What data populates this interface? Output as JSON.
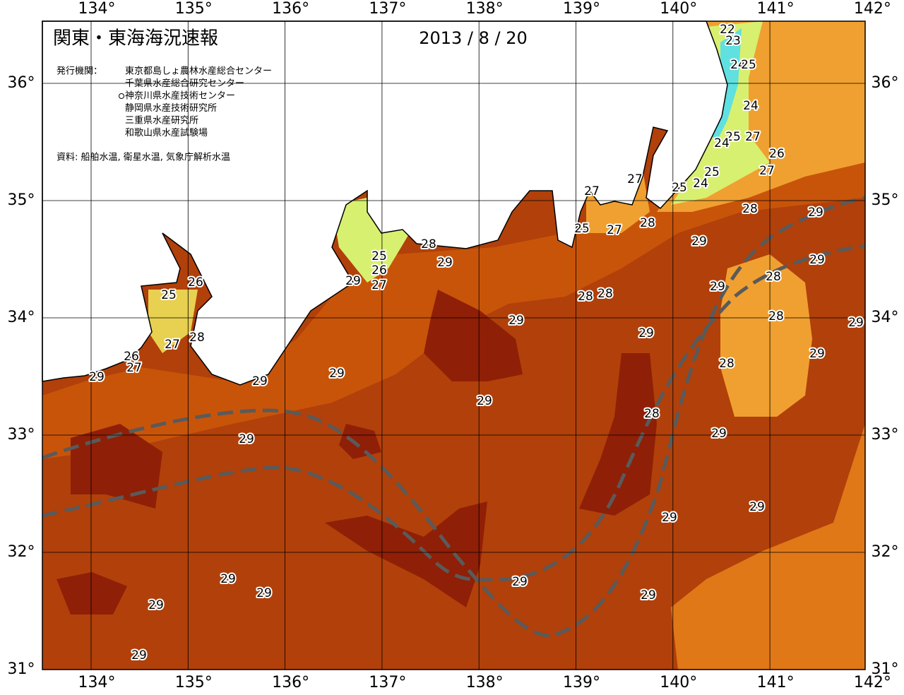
{
  "header": {
    "title": "関東・東海海況速報",
    "date": "2013 / 8 / 20"
  },
  "issuers": {
    "label": "発行機関：",
    "list": [
      "東京都島しょ農林水産総合センター",
      "千葉県水産総合研究センター",
      "神奈川県水産技術センター",
      "静岡県水産技術研究所",
      "三重県水産研究所",
      "和歌山県水産試験場"
    ]
  },
  "source": "資料: 船舶水温, 衛星水温, 気象庁解析水温",
  "axes": {
    "lon_labels": [
      "134°",
      "135°",
      "136°",
      "137°",
      "138°",
      "139°",
      "140°",
      "141°",
      "142°"
    ],
    "lat_labels": [
      "36°",
      "35°",
      "34°",
      "33°",
      "32°",
      "31°"
    ]
  },
  "contour_labels": [
    "22",
    "23",
    "24",
    "25",
    "24",
    "25",
    "24",
    "27",
    "26",
    "27",
    "25",
    "24",
    "25",
    "27",
    "27",
    "28",
    "29",
    "28",
    "27",
    "25",
    "29",
    "28",
    "25",
    "29",
    "26",
    "29",
    "28",
    "29",
    "27",
    "29",
    "26",
    "25",
    "28",
    "28",
    "28",
    "29",
    "29",
    "29",
    "28",
    "27",
    "29",
    "26",
    "28",
    "27",
    "29",
    "29",
    "29",
    "29",
    "28",
    "29",
    "29",
    "29",
    "29",
    "29",
    "29",
    "29",
    "29",
    "29",
    "29"
  ]
}
